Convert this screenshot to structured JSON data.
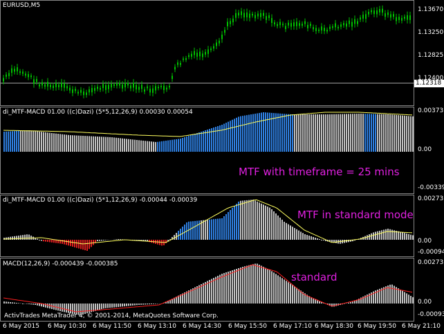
{
  "window": {
    "symbol_title": "EURUSD,M5"
  },
  "price_pane": {
    "axis_labels": [
      "1.13670",
      "1.13250",
      "1.12825",
      "1.12400"
    ],
    "current_price": "1.12318"
  },
  "mtf_pane_1": {
    "title": "di_MTF-MACD 01.00 ((c)Dazi) (5*5,12,26,9) 0.00030 0.00054",
    "axis_labels": [
      "0.00373",
      "0.00",
      "-0.00339"
    ],
    "annotation": "MTF with timeframe = 25 mins"
  },
  "mtf_pane_2": {
    "title": "di_MTF-MACD 01.00 ((c)Dazi) (5*1,12,26,9) -0.00044 -0.00039",
    "axis_labels": [
      "0.00273",
      "0.00",
      "-0.00094"
    ],
    "annotation": "MTF in standard mode"
  },
  "macd_pane": {
    "title": "MACD(12,26,9) -0.000439 -0.000385",
    "axis_labels": [
      "0.002733",
      "0.00",
      "-0.000936"
    ],
    "annotation": "standard",
    "copyright": "ActivTrades MetaTrader 4, © 2001-2014, MetaQuotes Software Corp."
  },
  "time_axis": [
    "6 May 2015",
    "6 May 10:30",
    "6 May 11:50",
    "6 May 13:10",
    "6 May 14:30",
    "6 May 15:50",
    "6 May 17:10",
    "6 May 18:30",
    "6 May 19:50",
    "6 May 21:10"
  ],
  "colors": {
    "candles": "#00c000",
    "bar_up": "#2f7fe0",
    "bar_grey": "#c0c0c0",
    "bar_red": "#e02020",
    "signal": "#ffff60",
    "macd_signal": "#ff2020",
    "annotation": "#e020e0"
  }
}
